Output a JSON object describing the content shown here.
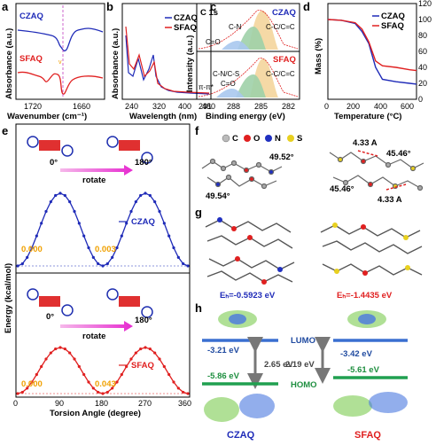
{
  "panels": {
    "a": {
      "label": "a",
      "legend": [
        "CZAQ",
        "SFAQ"
      ],
      "xlabel": "Wavenumber (cm⁻¹)",
      "ylabel": "Absorbance (a.u.)",
      "xticks": [
        "1720",
        "1660"
      ]
    },
    "b": {
      "label": "b",
      "legend": [
        "CZAQ",
        "SFAQ"
      ],
      "xlabel": "Wavelength (nm)",
      "ylabel": "Absorbance (a.u.)",
      "xticks": [
        "240",
        "320",
        "400",
        "480"
      ]
    },
    "c": {
      "label": "c",
      "title": "C 1s",
      "top_tag": "CZAQ",
      "bottom_tag": "SFAQ",
      "top_peaks": [
        "C-N",
        "C=O",
        "C-C/C=C"
      ],
      "bottom_peaks": [
        "C-N/C-S",
        "π-π*",
        "C=O",
        "C-C/C=C"
      ],
      "xlabel": "Binding energy (eV)",
      "ylabel": "Intensity (a.u.)",
      "xticks": [
        "291",
        "288",
        "285",
        "282"
      ]
    },
    "d": {
      "label": "d",
      "legend": [
        "CZAQ",
        "SFAQ"
      ],
      "xlabel": "Temperature (°C)",
      "ylabel": "Mass (%)",
      "xticks": [
        "0",
        "200",
        "400",
        "600"
      ],
      "yticks": [
        "0",
        "20",
        "40",
        "60",
        "80",
        "100",
        "120"
      ]
    },
    "e": {
      "label": "e",
      "ylabel": "Energy (kcal/mol)",
      "xlabel": "Torsion Angle (degree)",
      "xticks": [
        "0",
        "90",
        "180",
        "270",
        "360"
      ],
      "top": {
        "angle_left": "0°",
        "angle_right": "180°",
        "rotate": "rotate",
        "legend": "CZAQ",
        "v0": "0.000",
        "v180": "0.003"
      },
      "bottom": {
        "angle_left": "0°",
        "angle_right": "180°",
        "rotate": "rotate",
        "legend": "SFAQ",
        "v0": "0.000",
        "v180": "0.043"
      }
    },
    "f": {
      "label": "f",
      "legend": [
        "C",
        "O",
        "N",
        "S"
      ],
      "angle1": "49.52°",
      "angle2": "49.54°",
      "dist1": "4.33 A",
      "dist2": "4.33 A",
      "angle3": "45.46°",
      "angle4": "45.46°"
    },
    "g": {
      "label": "g",
      "eb_left": "Eₕ=-0.5923 eV",
      "eb_right": "Eₕ=-1.4435 eV"
    },
    "h": {
      "label": "h",
      "lumo": "LUMO",
      "homo": "HOMO",
      "czaq_lumo": "-3.21 eV",
      "czaq_homo": "-5.86 eV",
      "czaq_gap": "2.65 eV",
      "sfaq_lumo": "-3.42 eV",
      "sfaq_homo": "-5.61 eV",
      "sfaq_gap": "2.19 eV",
      "name_left": "CZAQ",
      "name_right": "SFAQ"
    }
  },
  "colors": {
    "czaq": "#1f2bb8",
    "sfaq": "#e02020",
    "orange": "#f0a000",
    "magenta": "#f040d0",
    "lumo_bar": "#3a6fd0",
    "homo_bar": "#20a050"
  },
  "chart_data": [
    {
      "type": "line",
      "panel": "a",
      "x": [
        1740,
        1720,
        1700,
        1680,
        1670,
        1660,
        1650,
        1640
      ],
      "series": [
        {
          "name": "CZAQ",
          "values": [
            0.9,
            0.88,
            0.87,
            0.85,
            0.75,
            0.6,
            0.8,
            0.85
          ]
        },
        {
          "name": "SFAQ",
          "values": [
            0.5,
            0.48,
            0.4,
            0.42,
            0.35,
            0.05,
            0.3,
            0.35
          ]
        }
      ]
    },
    {
      "type": "line",
      "panel": "d",
      "x": [
        0,
        100,
        200,
        250,
        300,
        350,
        400,
        500,
        600,
        650
      ],
      "series": [
        {
          "name": "CZAQ",
          "values": [
            100,
            99,
            95,
            85,
            70,
            40,
            25,
            22,
            20,
            19
          ]
        },
        {
          "name": "SFAQ",
          "values": [
            100,
            99,
            96,
            88,
            72,
            48,
            42,
            40,
            37,
            36
          ]
        }
      ],
      "ylim": [
        0,
        120
      ],
      "xlim": [
        0,
        650
      ]
    },
    {
      "type": "line",
      "panel": "e-top",
      "x": [
        0,
        45,
        90,
        120,
        150,
        180,
        210,
        240,
        270,
        300,
        315,
        330,
        360
      ],
      "series": [
        {
          "name": "CZAQ",
          "values": [
            0.0,
            1,
            4,
            12,
            4,
            0.003,
            1,
            4,
            9,
            12,
            9,
            4,
            0.0
          ]
        }
      ]
    },
    {
      "type": "line",
      "panel": "e-bottom",
      "x": [
        0,
        45,
        90,
        120,
        150,
        180,
        210,
        240,
        270,
        300,
        315,
        330,
        360
      ],
      "series": [
        {
          "name": "SFAQ",
          "values": [
            0.0,
            1,
            4,
            12,
            4,
            0.043,
            1,
            4,
            9,
            12,
            9,
            4,
            0.0
          ]
        }
      ]
    }
  ]
}
